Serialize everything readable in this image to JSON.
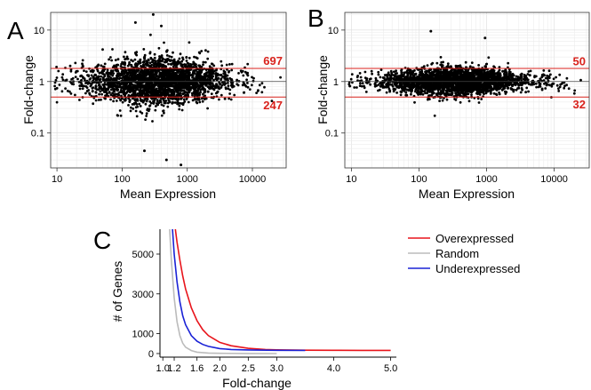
{
  "chart_data": [
    {
      "panel": "A",
      "type": "scatter",
      "xlabel": "Mean Expression",
      "ylabel": "Fold-change",
      "x_scale": "log",
      "y_scale": "log",
      "x_ticks": [
        10,
        100,
        1000,
        10000
      ],
      "x_tick_labels": [
        "10",
        "100",
        "1000",
        "10000"
      ],
      "y_ticks": [
        0.1,
        1,
        10
      ],
      "y_tick_labels": [
        "0.1",
        "1",
        "10"
      ],
      "xlim": [
        8,
        33000
      ],
      "ylim": [
        0.021,
        22
      ],
      "grid": true,
      "threshold_lines": [
        1.8,
        0.5
      ],
      "annotations": [
        {
          "text": "697",
          "y": 2.55
        },
        {
          "text": "247",
          "y": 0.35
        }
      ],
      "spread": 2.2,
      "outliers": [
        [
          160,
          14
        ],
        [
          300,
          20
        ],
        [
          400,
          12
        ],
        [
          220,
          0.045
        ],
        [
          480,
          0.03
        ],
        [
          800,
          0.024
        ]
      ]
    },
    {
      "panel": "B",
      "type": "scatter",
      "xlabel": "Mean Expression",
      "ylabel": "Fold-change",
      "x_scale": "log",
      "y_scale": "log",
      "x_ticks": [
        10,
        100,
        1000,
        10000
      ],
      "x_tick_labels": [
        "10",
        "100",
        "1000",
        "10000"
      ],
      "y_ticks": [
        0.1,
        1,
        10
      ],
      "y_tick_labels": [
        "0.1",
        "1",
        "10"
      ],
      "xlim": [
        8,
        33000
      ],
      "ylim": [
        0.021,
        22
      ],
      "grid": true,
      "threshold_lines": [
        1.8,
        0.5
      ],
      "annotations": [
        {
          "text": "50",
          "y": 2.5
        },
        {
          "text": "32",
          "y": 0.37
        }
      ],
      "spread": 1.35,
      "outliers": [
        [
          150,
          9.5
        ],
        [
          950,
          7.0
        ],
        [
          140,
          0.53
        ],
        [
          600,
          0.5
        ]
      ]
    },
    {
      "panel": "C",
      "type": "line",
      "xlabel": "Fold-change",
      "ylabel": "# of Genes",
      "x_ticks": [
        1.0,
        1.2,
        1.6,
        2.0,
        2.5,
        3.0,
        4.0,
        5.0
      ],
      "x_tick_labels": [
        "1.0",
        "1.2",
        "1.6",
        "2.0",
        "2.5",
        "3.0",
        "4.0",
        "5.0"
      ],
      "y_ticks": [
        0,
        1000,
        3000,
        5000
      ],
      "y_tick_labels": [
        "0",
        "1000",
        "3000",
        "5000"
      ],
      "xlim": [
        0.95,
        5.1
      ],
      "ylim": [
        -180,
        6250
      ],
      "legend_position": "top-right",
      "series": [
        {
          "name": "Overexpressed",
          "color": "#e8141b",
          "x": [
            1.22,
            1.25,
            1.3,
            1.35,
            1.4,
            1.5,
            1.6,
            1.7,
            1.8,
            2.0,
            2.2,
            2.5,
            2.8,
            3.0,
            3.5,
            4.0,
            4.5,
            5.0
          ],
          "y": [
            6250,
            5600,
            4700,
            3900,
            3250,
            2300,
            1650,
            1200,
            900,
            560,
            390,
            260,
            205,
            185,
            170,
            165,
            160,
            160
          ]
        },
        {
          "name": "Random",
          "color": "#bbbbbb",
          "x": [
            1.12,
            1.15,
            1.2,
            1.25,
            1.3,
            1.35,
            1.4,
            1.5,
            1.6,
            1.8,
            2.0,
            2.5,
            3.0
          ],
          "y": [
            6250,
            4700,
            2800,
            1600,
            900,
            520,
            320,
            150,
            70,
            25,
            10,
            3,
            0
          ]
        },
        {
          "name": "Underexpressed",
          "color": "#1a22d6",
          "x": [
            1.17,
            1.2,
            1.25,
            1.3,
            1.35,
            1.4,
            1.5,
            1.6,
            1.7,
            1.8,
            2.0,
            2.2,
            2.5,
            3.0,
            3.5
          ],
          "y": [
            6250,
            5000,
            3600,
            2600,
            1900,
            1450,
            900,
            620,
            460,
            360,
            250,
            205,
            180,
            165,
            160
          ]
        }
      ]
    }
  ],
  "panel_letters": [
    "A",
    "B",
    "C"
  ]
}
